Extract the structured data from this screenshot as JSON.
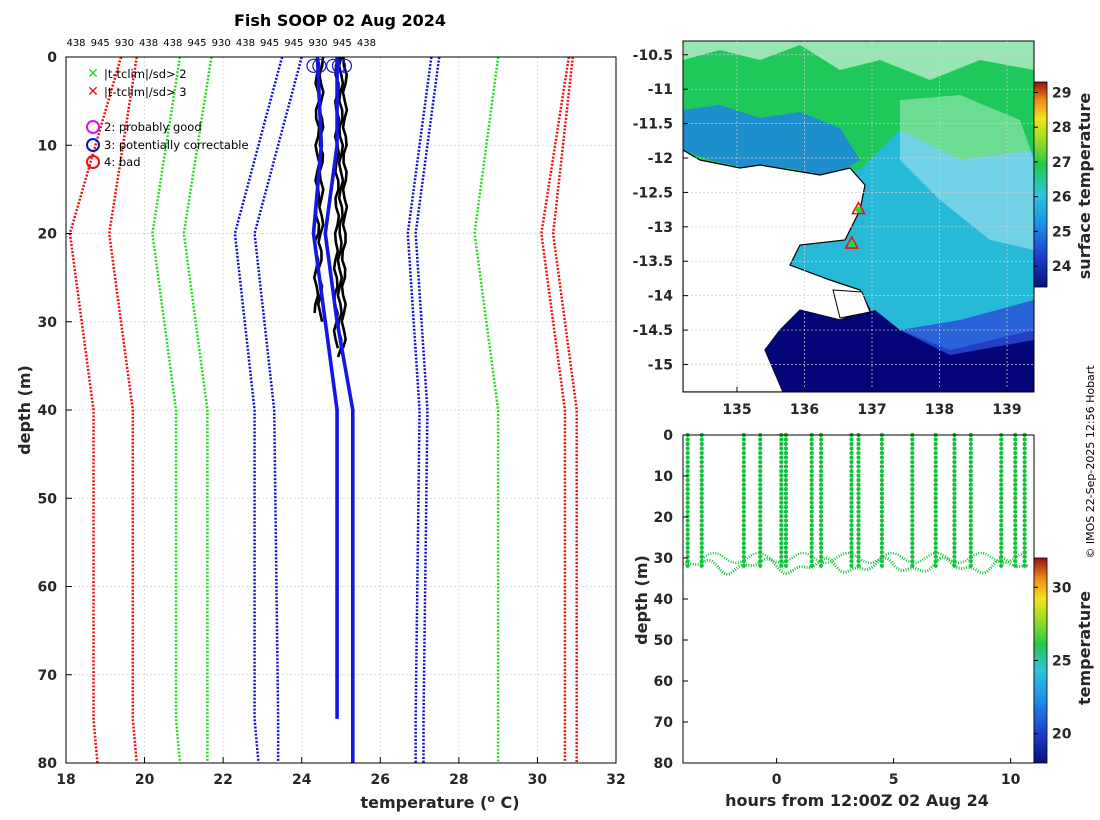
{
  "colors": {
    "red": "#ee1010",
    "green": "#22dd22",
    "blue": "#1010cc",
    "black": "#000000",
    "profile": "#1515e6",
    "ocean": "#2e90dd",
    "shallow": "#05057a",
    "land": "#12c23c"
  },
  "chart_data": [
    {
      "type": "line",
      "title": "Fish SOOP 02 Aug 2024",
      "xlabel": "temperature (° C)",
      "xlabel_prefix": "temperature (",
      "xlabel_sup": "o",
      "xlabel_suffix": " C)",
      "ylabel": "depth (m)",
      "xlim": [
        18,
        32
      ],
      "ylim": [
        0,
        80
      ],
      "xticks": [
        18,
        20,
        22,
        24,
        26,
        28,
        30,
        32
      ],
      "yticks": [
        0,
        10,
        20,
        30,
        40,
        50,
        60,
        70,
        80
      ],
      "top_ids": [
        "438",
        "945",
        "930",
        "438",
        "438",
        "945",
        "930",
        "438",
        "945",
        "945",
        "930",
        "945",
        "438"
      ],
      "legend": [
        "|t-tclim|/sd> 2",
        "|t-tclim|/sd> 3",
        "2: probably good",
        "3: potentially correctable",
        "4: bad"
      ],
      "climatology_envelopes": [
        {
          "name": "clim-red-outer-left",
          "color": "red",
          "depths": [
            0,
            20,
            40,
            75,
            80
          ],
          "values": [
            19.4,
            18.1,
            18.7,
            18.7,
            18.8
          ]
        },
        {
          "name": "clim-red-inner-left",
          "color": "red",
          "depths": [
            0,
            20,
            40,
            75,
            80
          ],
          "values": [
            19.8,
            19.1,
            19.7,
            19.7,
            19.8
          ]
        },
        {
          "name": "clim-green-left-a",
          "color": "green",
          "depths": [
            0,
            20,
            40,
            75,
            80
          ],
          "values": [
            20.9,
            20.2,
            20.8,
            20.8,
            20.9
          ]
        },
        {
          "name": "clim-green-left-b",
          "color": "green",
          "depths": [
            0,
            20,
            40,
            75,
            80
          ],
          "values": [
            21.7,
            21.0,
            21.6,
            21.6,
            21.6
          ]
        },
        {
          "name": "clim-blue-left-a",
          "color": "blue",
          "depths": [
            0,
            20,
            40,
            75,
            80
          ],
          "values": [
            23.5,
            22.3,
            22.8,
            22.8,
            22.9
          ]
        },
        {
          "name": "clim-blue-left-b",
          "color": "blue",
          "depths": [
            0,
            20,
            40,
            75,
            80
          ],
          "values": [
            24.0,
            22.8,
            23.3,
            23.4,
            23.4
          ]
        },
        {
          "name": "clim-blue-right-a",
          "color": "blue",
          "depths": [
            0,
            20,
            40,
            75,
            80
          ],
          "values": [
            27.3,
            26.7,
            27.0,
            26.9,
            26.9
          ]
        },
        {
          "name": "clim-blue-right-b",
          "color": "blue",
          "depths": [
            0,
            20,
            40,
            75,
            80
          ],
          "values": [
            27.5,
            26.9,
            27.2,
            27.1,
            27.1
          ]
        },
        {
          "name": "clim-green-right",
          "color": "green",
          "depths": [
            0,
            20,
            40,
            75,
            80
          ],
          "values": [
            29.0,
            28.4,
            29.0,
            29.0,
            29.0
          ]
        },
        {
          "name": "clim-red-right-a",
          "color": "red",
          "depths": [
            0,
            20,
            40,
            75,
            80
          ],
          "values": [
            30.8,
            30.1,
            30.7,
            30.7,
            30.7
          ]
        },
        {
          "name": "clim-red-right-b",
          "color": "red",
          "depths": [
            0,
            20,
            40,
            75,
            80
          ],
          "values": [
            30.9,
            30.4,
            31.0,
            31.0,
            31.0
          ]
        }
      ],
      "mean_profiles": [
        {
          "name": "mean-profile-a",
          "depths": [
            0,
            10,
            20,
            30,
            40,
            75
          ],
          "values": [
            24.4,
            24.5,
            24.3,
            24.6,
            24.9,
            24.9
          ]
        },
        {
          "name": "mean-profile-b",
          "depths": [
            0,
            10,
            20,
            30,
            40,
            80
          ],
          "values": [
            24.9,
            24.9,
            24.6,
            24.9,
            25.3,
            25.3
          ]
        }
      ],
      "observed_profiles": [
        {
          "temperature": 24.4,
          "max_depth": 29
        },
        {
          "temperature": 24.5,
          "max_depth": 30
        },
        {
          "temperature": 24.9,
          "max_depth": 33
        },
        {
          "temperature": 25.0,
          "max_depth": 34
        },
        {
          "temperature": 25.1,
          "max_depth": 33
        }
      ],
      "qc_circles": [
        24.3,
        24.45,
        24.8,
        24.95,
        25.1
      ]
    },
    {
      "type": "heatmap",
      "title": "",
      "xlim": [
        134.2,
        139.4
      ],
      "ylim": [
        -15.4,
        -10.3
      ],
      "xticks": [
        135,
        136,
        137,
        138,
        139
      ],
      "yticks": [
        -10.5,
        -11,
        -11.5,
        -12,
        -12.5,
        -13,
        -13.5,
        -14,
        -14.5,
        -15
      ],
      "colorbar": {
        "label": "surface temperature",
        "range": [
          23.4,
          29.3
        ],
        "ticks": [
          24,
          25,
          26,
          27,
          28,
          29
        ]
      },
      "markers": [
        {
          "lon": 136.8,
          "lat": -12.75
        },
        {
          "lon": 136.7,
          "lat": -13.25
        }
      ]
    },
    {
      "type": "scatter",
      "xlabel": "hours from 12:00Z 02 Aug 24",
      "ylabel": "depth (m)",
      "xlim": [
        -4,
        11
      ],
      "ylim": [
        0,
        80
      ],
      "xticks": [
        0,
        5,
        10
      ],
      "yticks": [
        0,
        10,
        20,
        30,
        40,
        50,
        60,
        70,
        80
      ],
      "colorbar": {
        "label": "temperature",
        "range": [
          18,
          32
        ],
        "ticks": [
          20,
          25,
          30
        ]
      },
      "cast_times": [
        -3.8,
        -3.2,
        -1.4,
        -0.7,
        0.2,
        0.4,
        1.5,
        1.9,
        3.2,
        3.5,
        4.5,
        5.8,
        6.8,
        7.6,
        8.3,
        9.6,
        10.2,
        10.6
      ]
    }
  ],
  "credit": "© IMOS 22-Sep-2025 12:56 Hobart"
}
